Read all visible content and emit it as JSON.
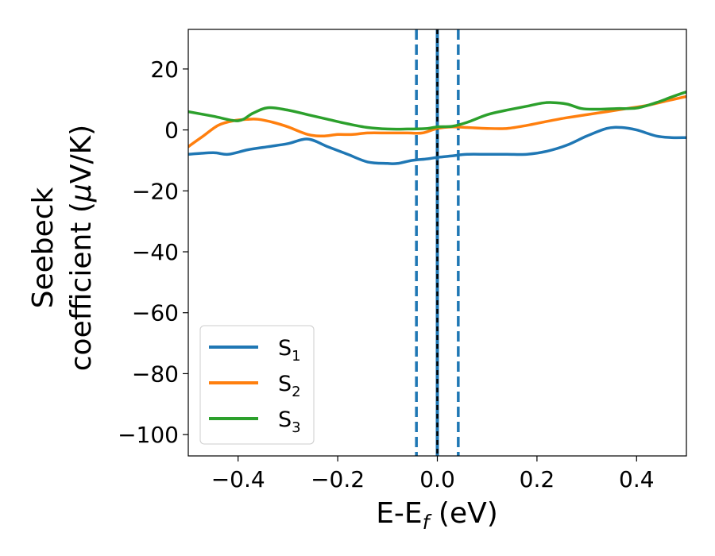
{
  "chart_data": {
    "type": "line",
    "xlabel": {
      "main": "E-E",
      "sub": "f",
      "unit": " (eV)"
    },
    "ylabel": {
      "line1": "Seebeck",
      "line2": "coefficient  (",
      "mu": "μ",
      "unit": "V/K)"
    },
    "xlim": [
      -0.5,
      0.5
    ],
    "ylim": [
      -107,
      33
    ],
    "xticks": [
      -0.4,
      -0.2,
      0.0,
      0.2,
      0.4
    ],
    "xtick_labels": [
      "−0.4",
      "−0.2",
      "0.0",
      "0.2",
      "0.4"
    ],
    "yticks": [
      20,
      0,
      -20,
      -40,
      -60,
      -80,
      -100
    ],
    "ytick_labels": [
      "20",
      "0",
      "−20",
      "−40",
      "−60",
      "−80",
      "−100"
    ],
    "grid": false,
    "legend_position": "lower-left",
    "vlines": [
      {
        "x": -0.042,
        "style": "dashed",
        "color": "#1f77b4"
      },
      {
        "x": 0.0,
        "style": "solid",
        "color": "#1f77b4"
      },
      {
        "x": 0.0,
        "style": "dashed",
        "color": "#000000"
      },
      {
        "x": 0.042,
        "style": "dashed",
        "color": "#1f77b4"
      }
    ],
    "series": [
      {
        "name": "S1",
        "label_main": "S",
        "label_sub": "1",
        "color": "#1f77b4",
        "x": [
          -0.5,
          -0.45,
          -0.42,
          -0.38,
          -0.34,
          -0.3,
          -0.26,
          -0.22,
          -0.18,
          -0.14,
          -0.1,
          -0.08,
          -0.05,
          -0.02,
          0.0,
          0.03,
          0.06,
          0.1,
          0.14,
          0.18,
          0.22,
          0.26,
          0.3,
          0.34,
          0.37,
          0.4,
          0.44,
          0.47,
          0.5
        ],
        "y": [
          -8,
          -7.5,
          -8,
          -6.5,
          -5.5,
          -4.5,
          -3,
          -5.5,
          -8,
          -10.5,
          -11,
          -11,
          -10,
          -9.5,
          -9,
          -8.5,
          -8,
          -8,
          -8,
          -8,
          -7,
          -5,
          -2,
          0.5,
          0.8,
          0,
          -2,
          -2.5,
          -2.5
        ]
      },
      {
        "name": "S2",
        "label_main": "S",
        "label_sub": "2",
        "color": "#ff7f0e",
        "x": [
          -0.5,
          -0.47,
          -0.44,
          -0.41,
          -0.38,
          -0.36,
          -0.33,
          -0.3,
          -0.26,
          -0.23,
          -0.2,
          -0.17,
          -0.14,
          -0.1,
          -0.06,
          -0.03,
          0.0,
          0.03,
          0.06,
          0.1,
          0.14,
          0.18,
          0.22,
          0.26,
          0.3,
          0.34,
          0.38,
          0.42,
          0.46,
          0.5
        ],
        "y": [
          -5.5,
          -2,
          1.5,
          3,
          3.5,
          3.5,
          2.5,
          1,
          -1.5,
          -2,
          -1.5,
          -1.5,
          -1,
          -1,
          -1,
          -1,
          0.5,
          1,
          0.8,
          0.5,
          0.5,
          1.5,
          2.8,
          4,
          5,
          6,
          7,
          8,
          9.5,
          11
        ]
      },
      {
        "name": "S3",
        "label_main": "S",
        "label_sub": "3",
        "color": "#2ca02c",
        "x": [
          -0.5,
          -0.45,
          -0.4,
          -0.37,
          -0.34,
          -0.3,
          -0.26,
          -0.22,
          -0.18,
          -0.14,
          -0.1,
          -0.06,
          -0.02,
          0.0,
          0.03,
          0.06,
          0.1,
          0.14,
          0.18,
          0.21,
          0.23,
          0.26,
          0.29,
          0.32,
          0.36,
          0.4,
          0.44,
          0.47,
          0.5
        ],
        "y": [
          6,
          4.5,
          3,
          5.5,
          7.3,
          6.5,
          5,
          3.5,
          2,
          0.8,
          0.3,
          0.3,
          0.5,
          1,
          1.2,
          2.5,
          5,
          6.5,
          7.8,
          8.8,
          9,
          8.5,
          7,
          6.8,
          7,
          7.2,
          9,
          10.8,
          12.5
        ]
      }
    ]
  }
}
